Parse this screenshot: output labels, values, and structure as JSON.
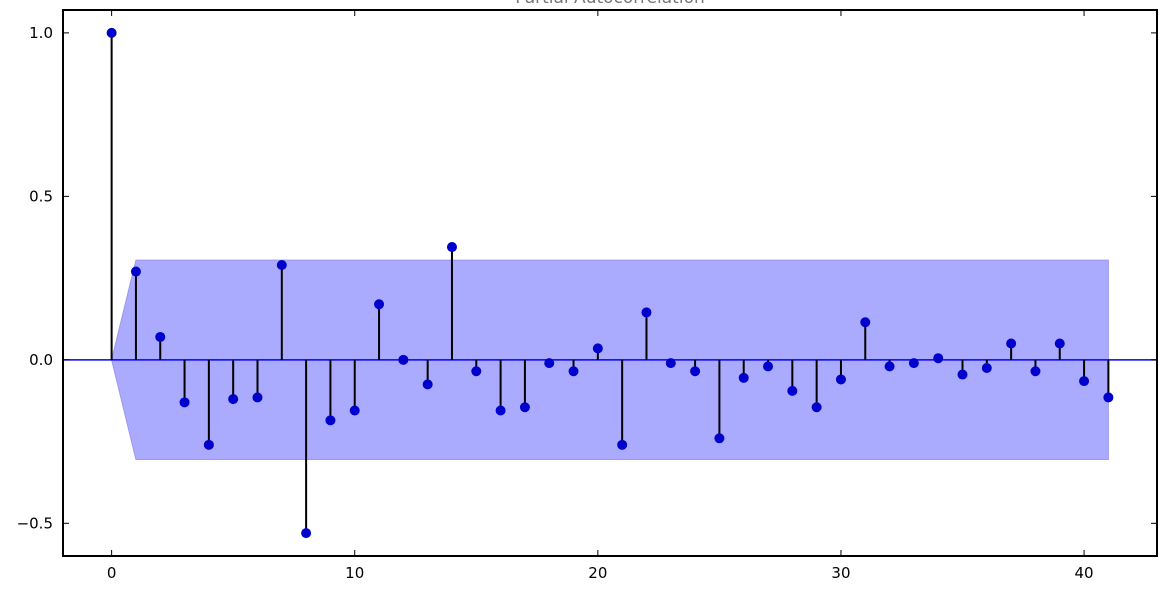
{
  "chart_data": {
    "type": "stem",
    "title": "Partial Autocorrelation",
    "xlabel": "",
    "ylabel": "",
    "xlim": [
      -2,
      43
    ],
    "ylim": [
      -0.6,
      1.07
    ],
    "x_ticks": [
      0,
      10,
      20,
      30,
      40
    ],
    "x_tick_labels": [
      "0",
      "10",
      "20",
      "30",
      "40"
    ],
    "y_ticks": [
      1.0,
      0.5,
      0.0,
      -0.5
    ],
    "y_tick_labels": [
      "1.0",
      "0.5",
      "0.0",
      "−0.5"
    ],
    "grid": false,
    "legend": "none",
    "zero_line": 0.0,
    "lags": [
      0,
      1,
      2,
      3,
      4,
      5,
      6,
      7,
      8,
      9,
      10,
      11,
      12,
      13,
      14,
      15,
      16,
      17,
      18,
      19,
      20,
      21,
      22,
      23,
      24,
      25,
      26,
      27,
      28,
      29,
      30,
      31,
      32,
      33,
      34,
      35,
      36,
      37,
      38,
      39,
      40,
      41
    ],
    "values": [
      1.0,
      0.27,
      0.07,
      -0.13,
      -0.26,
      -0.12,
      -0.115,
      0.29,
      -0.53,
      -0.185,
      -0.155,
      0.17,
      0.0,
      -0.075,
      0.345,
      -0.035,
      -0.155,
      -0.145,
      -0.01,
      -0.035,
      0.035,
      -0.26,
      0.145,
      -0.01,
      -0.035,
      -0.24,
      -0.055,
      -0.02,
      -0.095,
      -0.145,
      -0.06,
      0.115,
      -0.02,
      -0.01,
      0.005,
      -0.045,
      -0.025,
      0.05,
      -0.035,
      0.05,
      -0.065,
      -0.115
    ],
    "confidence_band": {
      "x": [
        0,
        1,
        41
      ],
      "upper": [
        0.0,
        0.305,
        0.305
      ],
      "lower": [
        0.0,
        -0.305,
        -0.305
      ]
    },
    "colors": {
      "marker": "#0000cc",
      "stem": "#000000",
      "band_fill": "#aaaaff",
      "band_edge": "#9999ee",
      "zero_line": "#0000ff",
      "axes": "#000000"
    }
  }
}
